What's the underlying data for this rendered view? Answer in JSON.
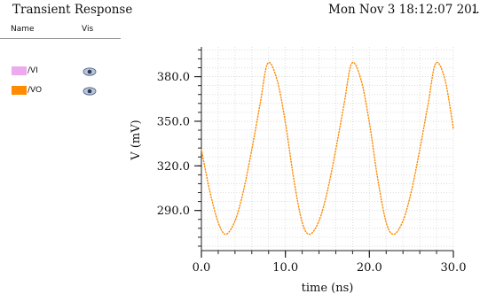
{
  "window": {
    "title": "Transient Response",
    "timestamp": "Mon Nov 3 18:12:07 20…",
    "timestamp_extra": "1"
  },
  "legend": {
    "col_name": "Name",
    "col_vis": "Vis",
    "items": [
      {
        "name": "/VI",
        "color": "#eeaaee",
        "visibility_icon": "eye-icon"
      },
      {
        "name": "/VO",
        "color": "#ff8c00",
        "visibility_icon": "eye-icon"
      }
    ]
  },
  "chart_data": {
    "type": "line",
    "xlabel": "time (ns)",
    "ylabel": "V (mV)",
    "xlim": [
      0,
      30
    ],
    "ylim": [
      263,
      400
    ],
    "x_ticks": [
      0,
      10,
      20,
      30
    ],
    "x_tick_labels": [
      "0.0",
      "10.0",
      "20.0",
      "30.0"
    ],
    "y_ticks": [
      290,
      320,
      350,
      380
    ],
    "y_tick_labels": [
      "290.0",
      "320.0",
      "350.0",
      "380.0"
    ],
    "grid": true,
    "line_style": "dotted",
    "series": [
      {
        "name": "/VO",
        "color": "#ff8c00",
        "x": [
          0,
          1,
          2,
          2.9,
          4,
          5,
          6,
          7,
          7.9,
          9,
          10,
          11,
          12,
          12.9,
          14,
          15,
          16,
          17,
          17.9,
          19,
          20,
          21,
          22,
          22.9,
          24,
          25,
          26,
          27,
          27.9,
          29,
          30
        ],
        "values": [
          331,
          303,
          282,
          274,
          283,
          303,
          331,
          362,
          389,
          378,
          349,
          311,
          282,
          274,
          283,
          303,
          331,
          362,
          389,
          378,
          349,
          311,
          282,
          274,
          283,
          303,
          331,
          362,
          389,
          378,
          345
        ]
      }
    ]
  }
}
